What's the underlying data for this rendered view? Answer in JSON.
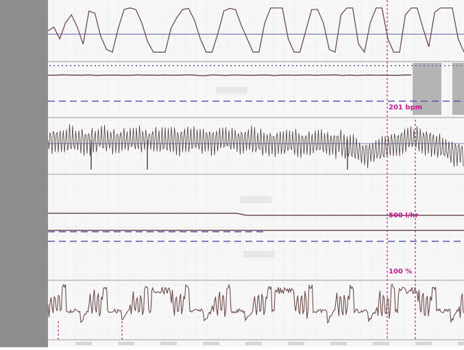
{
  "chart_data": [
    {
      "type": "line",
      "channel": "top-trace",
      "description_values": "square-wave like trace alternating between high and low",
      "series": [
        {
          "values": [
            0.55,
            0.62,
            0.4,
            0.7,
            0.85,
            0.62,
            0.3,
            0.92,
            0.88,
            0.45,
            0.2,
            0.15,
            0.6,
            0.95,
            0.98,
            0.95,
            0.7,
            0.35,
            0.15,
            0.15,
            0.15,
            0.6,
            0.8,
            0.95,
            0.97,
            0.75,
            0.4,
            0.15,
            0.15,
            0.5,
            0.92,
            0.97,
            0.95,
            0.65,
            0.4,
            0.15,
            0.15,
            0.7,
            0.98,
            0.98,
            0.98,
            0.4,
            0.15,
            0.15,
            0.55,
            0.95,
            0.95,
            0.7,
            0.2,
            0.15,
            0.85,
            0.98,
            0.98,
            0.3,
            0.15,
            0.7,
            0.98,
            0.98,
            0.4,
            0.15,
            0.15,
            0.85,
            0.98,
            0.98,
            0.6,
            0.25,
            0.9,
            0.98,
            0.98,
            0.98,
            0.4,
            0.15
          ]
        }
      ]
    },
    {
      "type": "line",
      "channel": "second-trace",
      "labels": [
        "201 bpm"
      ]
    },
    {
      "type": "line",
      "channel": "oscillation-trace",
      "description_values": "dense high-frequency oscillation with baseline drift"
    },
    {
      "type": "line",
      "channel": "flat-traces",
      "labels": [
        "500 l/hr"
      ]
    },
    {
      "type": "line",
      "channel": "bottom-trace",
      "labels": [
        "100 %"
      ]
    }
  ],
  "markers": {
    "magenta_label_1": "201 bpm",
    "magenta_label_2": "500 l/hr",
    "magenta_label_3": "100 %"
  },
  "colors": {
    "trace": "#6b4a4a",
    "reference_line": "#5a55a8",
    "magenta": "#c0188c",
    "grid": "#c8c8d8",
    "left_strip": "#8e8e8e",
    "gray_block": "#b4b4b4"
  }
}
